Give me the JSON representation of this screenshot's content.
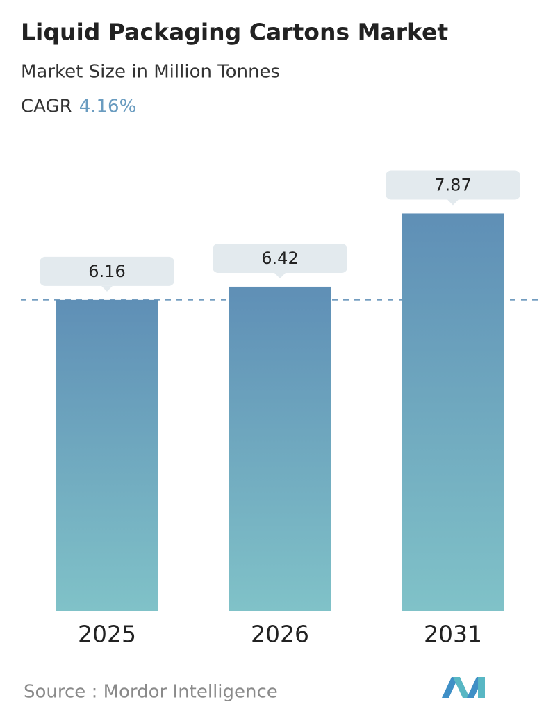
{
  "chart_data": {
    "type": "bar",
    "title": "Liquid Packaging Cartons Market",
    "subtitle": "Market Size in Million Tonnes",
    "cagr_label": "CAGR",
    "cagr_value": "4.16%",
    "categories": [
      "2025",
      "2026",
      "2031"
    ],
    "values": [
      6.16,
      6.42,
      7.87
    ],
    "ylim": [
      0,
      8
    ],
    "color_top": "#5f8fb6",
    "color_bottom": "#80c2c8",
    "source": "Source :  Mordor Intelligence"
  }
}
